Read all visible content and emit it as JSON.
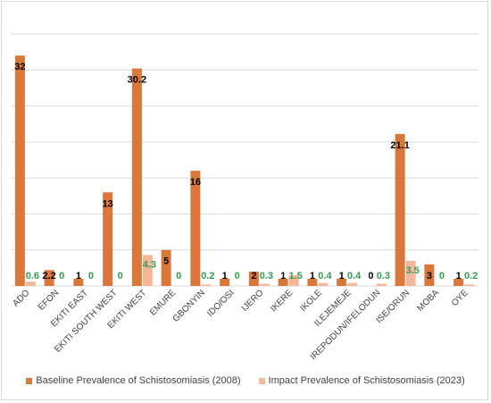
{
  "chart_data": {
    "type": "bar",
    "categories": [
      "ADO",
      "EFON",
      "EKITI EAST",
      "EKITI SOUTH WEST",
      "EKITI WEST",
      "EMURE",
      "GBONYIN",
      "IDO/OSI",
      "IJERO",
      "IKERE",
      "IKOLE",
      "ILEJEMEJE",
      "IREPODUN/IFELODUN",
      "ISE/ORUN",
      "MOBA",
      "OYE"
    ],
    "series": [
      {
        "name": "Baseline Prevalence of Schistosomiasis (2008)",
        "color": "#d9783a",
        "values": [
          32,
          2.2,
          1,
          13,
          30.2,
          5,
          16,
          1,
          2,
          1,
          1,
          1,
          0,
          21.1,
          3,
          1
        ],
        "labels": [
          "32",
          "2.2",
          "1",
          "13",
          "30.2",
          "5",
          "16",
          "1",
          "2",
          "1",
          "1",
          "1",
          "0",
          "21.1",
          "3",
          "1"
        ]
      },
      {
        "name": "Impact Prevalence of Schistosomiasis (2023)",
        "color": "#f4b79a",
        "values": [
          0.6,
          0,
          0,
          0,
          4.3,
          0,
          0.2,
          0,
          0.3,
          1.5,
          0.4,
          0.4,
          0.3,
          3.5,
          0,
          0.2
        ],
        "labels": [
          "0.6",
          "0",
          "0",
          "0",
          "4.3",
          "0",
          "0.2",
          "0",
          "0.3",
          "1.5",
          "0.4",
          "0.4",
          "0.3",
          "3.5",
          "0",
          "0.2"
        ]
      }
    ],
    "ylim": [
      0,
      35
    ],
    "gridlines": [
      0,
      5,
      10,
      15,
      20,
      25,
      30,
      35
    ],
    "grid": true,
    "legend_position": "bottom",
    "impact_label_color": "#2e9e4f",
    "gridline_color": "#d9d9d9"
  }
}
